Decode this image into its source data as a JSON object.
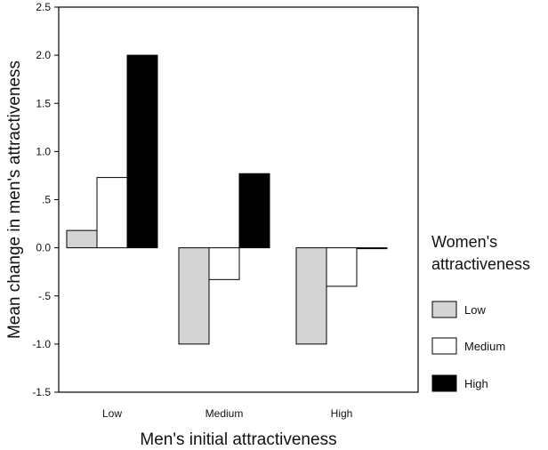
{
  "chart_data": {
    "type": "bar",
    "categories": [
      "Low",
      "Medium",
      "High"
    ],
    "series": [
      {
        "name": "Low",
        "values": [
          0.18,
          -1.0,
          -1.0
        ],
        "color": "#d4d4d4"
      },
      {
        "name": "Medium",
        "values": [
          0.73,
          -0.33,
          -0.4
        ],
        "color": "#ffffff"
      },
      {
        "name": "High",
        "values": [
          2.0,
          0.77,
          0.0
        ],
        "color": "#000000"
      }
    ],
    "xlabel": "Men's initial attractiveness",
    "ylabel": "Mean change in men's attractiveness",
    "ylim": [
      -1.5,
      2.5
    ],
    "yticks": [
      2.5,
      2.0,
      1.5,
      1.0,
      0.5,
      0.0,
      -0.5,
      -1.0,
      -1.5
    ],
    "ytick_labels": [
      "2.5",
      "2.0",
      "1.5",
      "1.0",
      ".5",
      "0.0",
      "-.5",
      "-1.0",
      "-1.5"
    ],
    "legend_title": "Women's attractiveness",
    "legend_title_lines": [
      "Women's",
      "attractiveness"
    ],
    "legend_placement": "right",
    "grid": false
  }
}
